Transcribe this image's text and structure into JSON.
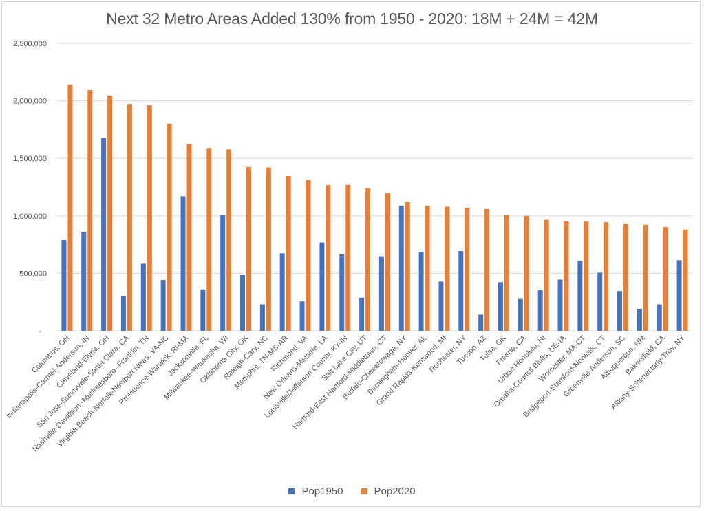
{
  "chart_data": {
    "type": "bar",
    "title": "Next 32 Metro Areas Added 130% from 1950 - 2020: 18M + 24M = 42M",
    "xlabel": "",
    "ylabel": "",
    "ylim": [
      0,
      2500000
    ],
    "yticks": [
      0,
      500000,
      1000000,
      1500000,
      2000000,
      2500000
    ],
    "ytick_labels": [
      "-",
      "500,000",
      "1,000,000",
      "1,500,000",
      "2,000,000",
      "2,500,000"
    ],
    "grid": true,
    "legend_position": "bottom",
    "categories": [
      "Columbus, OH",
      "Indianapolis-Carmel-Anderson, IN",
      "Cleveland-Elyria, OH",
      "San Jose-Sunnyvale-Santa Clara, CA",
      "Nashville-Davidson--Murfreesboro--Franklin, TN",
      "Virginia Beach-Norfolk-Newport News, VA-NC",
      "Providence-Warwick, RI-MA",
      "Jacksonville, FL",
      "Milwaukee-Waukesha, WI",
      "Oklahoma City, OK",
      "Raleigh-Cary, NC",
      "Memphis, TN-MS-AR",
      "Richmond, VA",
      "New Orleans-Metairie, LA",
      "Louisville/Jefferson County, KY-IN",
      "Salt Lake City, UT",
      "Hartford-East Hartford-Middletown, CT",
      "Buffalo-Cheektowaga, NY",
      "Birmingham-Hoover, AL",
      "Grand Rapids-Kentwood, MI",
      "Rochester, NY",
      "Tucson, AZ",
      "Tulsa, OK",
      "Fresno, CA",
      "Urban Honolulu, HI",
      "Omaha-Council Bluffs, NE-IA",
      "Worcester, MA-CT",
      "Bridgeport-Stamford-Norwalk, CT",
      "Greenville-Anderson, SC",
      "Albuquerque, NM",
      "Bakersfield, CA",
      "Albany-Schenectady-Troy, NY"
    ],
    "series": [
      {
        "name": "Pop1950",
        "color": "#4472c4",
        "values": [
          790000,
          860000,
          1680000,
          304000,
          584000,
          442000,
          1170000,
          360000,
          1010000,
          484000,
          230000,
          674000,
          256000,
          768000,
          664000,
          288000,
          648000,
          1088000,
          688000,
          428000,
          693000,
          141000,
          423000,
          277000,
          353000,
          446000,
          608000,
          506000,
          346000,
          190000,
          230000,
          614000
        ]
      },
      {
        "name": "Pop2020",
        "color": "#ed7d31",
        "values": [
          2141000,
          2093000,
          2045000,
          1973000,
          1961000,
          1801000,
          1625000,
          1589000,
          1577000,
          1424000,
          1420000,
          1346000,
          1312000,
          1268000,
          1268000,
          1238000,
          1200000,
          1122000,
          1088000,
          1080000,
          1070000,
          1060000,
          1010000,
          1000000,
          966000,
          952000,
          950000,
          944000,
          932000,
          922000,
          902000,
          880000
        ]
      }
    ]
  }
}
